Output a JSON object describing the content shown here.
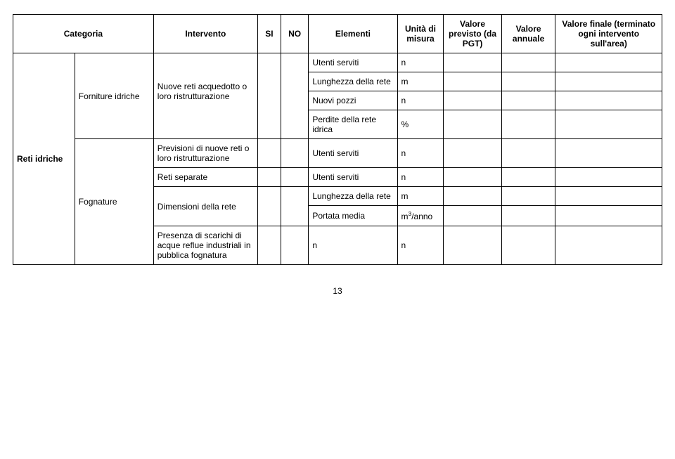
{
  "headers": {
    "categoria": "Categoria",
    "intervento": "Intervento",
    "si": "SI",
    "no": "NO",
    "elementi": "Elementi",
    "unita": "Unità di misura",
    "vprev": "Valore previsto (da PGT)",
    "vann": "Valore annuale",
    "vfin": "Valore finale (terminato ogni intervento sull'area)"
  },
  "cat": "Reti idriche",
  "sub1": "Forniture idriche",
  "sub2": "Fognature",
  "int1": "Nuove reti acquedotto  o loro ristrutturazione",
  "int2": "Previsioni di nuove reti o loro ristrutturazione",
  "int3": "Reti separate",
  "int4": "Dimensioni della rete",
  "int5": "Presenza di scarichi di acque reflue industriali in pubblica fognatura",
  "el_utenti": "Utenti serviti",
  "el_lungh": "Lunghezza della rete",
  "el_pozzi": "Nuovi pozzi",
  "el_perdite": "Perdite della rete idrica",
  "el_portata": "Portata media",
  "el_n": "n",
  "u_n": "n",
  "u_m": "m",
  "u_pct": "%",
  "u_m3anno_pre": "m",
  "u_m3anno_sup": "3",
  "u_m3anno_post": "/anno",
  "page": "13"
}
